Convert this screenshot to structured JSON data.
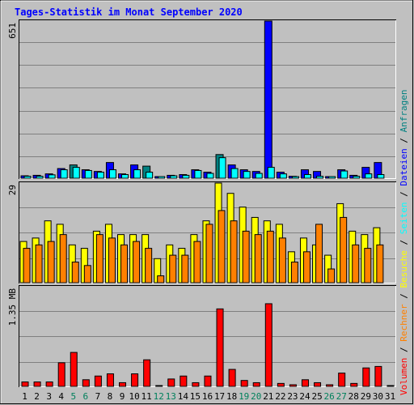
{
  "chart_data": {
    "type": "bar",
    "title": "Tages-Statistik im Monat September 2020",
    "days": [
      "1",
      "2",
      "3",
      "4",
      "5",
      "6",
      "7",
      "8",
      "9",
      "10",
      "11",
      "12",
      "13",
      "14",
      "15",
      "16",
      "17",
      "18",
      "19",
      "20",
      "21",
      "22",
      "23",
      "24",
      "25",
      "26",
      "27",
      "28",
      "29",
      "30",
      "31"
    ],
    "weekend_days": [
      "5",
      "6",
      "12",
      "13",
      "19",
      "20",
      "26",
      "27"
    ],
    "colors": {
      "anfragen": "#008080",
      "dateien": "#0000ff",
      "seiten": "#00ffff",
      "besuche": "#ffff00",
      "rechner": "#ff8000",
      "volumen": "#ff0000",
      "title": "#0000ff",
      "weekday": "#000000",
      "weekend": "#00805c",
      "background": "#c0c0c0",
      "grid": "#808080"
    },
    "panels": [
      {
        "name": "requests",
        "ylabel": "651",
        "ymax": 651,
        "series": [
          {
            "name": "Anfragen",
            "color_key": "anfragen",
            "values": [
              10,
              12,
              18,
              40,
              55,
              35,
              28,
              65,
              18,
              55,
              50,
              5,
              12,
              15,
              35,
              25,
              98,
              55,
              35,
              28,
              651,
              25,
              8,
              35,
              28,
              6,
              35,
              12,
              45,
              65,
              0
            ]
          },
          {
            "name": "Dateien",
            "color_key": "dateien",
            "values": [
              10,
              12,
              18,
              40,
              55,
              35,
              28,
              65,
              18,
              55,
              50,
              5,
              12,
              15,
              35,
              25,
              98,
              55,
              35,
              28,
              651,
              25,
              8,
              35,
              28,
              6,
              35,
              12,
              45,
              65,
              0
            ]
          },
          {
            "name": "Seiten",
            "color_key": "seiten",
            "values": [
              8,
              8,
              14,
              35,
              45,
              32,
              25,
              35,
              15,
              35,
              25,
              2,
              10,
              12,
              32,
              20,
              85,
              40,
              28,
              20,
              45,
              18,
              5,
              15,
              8,
              4,
              30,
              8,
              18,
              15,
              0
            ]
          }
        ]
      },
      {
        "name": "visits",
        "ylabel": "29",
        "ymax": 29,
        "series": [
          {
            "name": "Besuche",
            "color_key": "besuche",
            "values": [
              12,
              13,
              18,
              17,
              11,
              10,
              15,
              17,
              14,
              14,
              14,
              7,
              11,
              10,
              14,
              18,
              29,
              26,
              22,
              19,
              18,
              17,
              9,
              13,
              11,
              8,
              23,
              15,
              14,
              16,
              0
            ]
          },
          {
            "name": "Rechner",
            "color_key": "rechner",
            "values": [
              10,
              11,
              12,
              14,
              6,
              5,
              14,
              13,
              11,
              12,
              10,
              2,
              8,
              8,
              12,
              17,
              21,
              18,
              15,
              14,
              15,
              13,
              6,
              9,
              17,
              4,
              19,
              11,
              10,
              11,
              0
            ]
          }
        ]
      },
      {
        "name": "volume",
        "ylabel": "1.35 MB",
        "ymax": 1.35,
        "series": [
          {
            "name": "Volumen",
            "color_key": "volumen",
            "values": [
              0.06,
              0.06,
              0.06,
              0.32,
              0.46,
              0.09,
              0.14,
              0.17,
              0.05,
              0.17,
              0.36,
              0.0,
              0.1,
              0.14,
              0.05,
              0.14,
              1.05,
              0.23,
              0.08,
              0.05,
              1.12,
              0.04,
              0.02,
              0.09,
              0.05,
              0.01,
              0.18,
              0.04,
              0.25,
              0.27,
              0.0
            ]
          }
        ]
      }
    ],
    "legend": [
      {
        "text": "Volumen",
        "color_key": "volumen"
      },
      {
        "text": "Rechner",
        "color_key": "rechner"
      },
      {
        "text": "Besuche",
        "color_key": "besuche"
      },
      {
        "text": "Seiten",
        "color_key": "seiten"
      },
      {
        "text": "Dateien",
        "color_key": "dateien"
      },
      {
        "text": "Anfragen",
        "color_key": "anfragen"
      }
    ],
    "legend_separator": "/"
  }
}
